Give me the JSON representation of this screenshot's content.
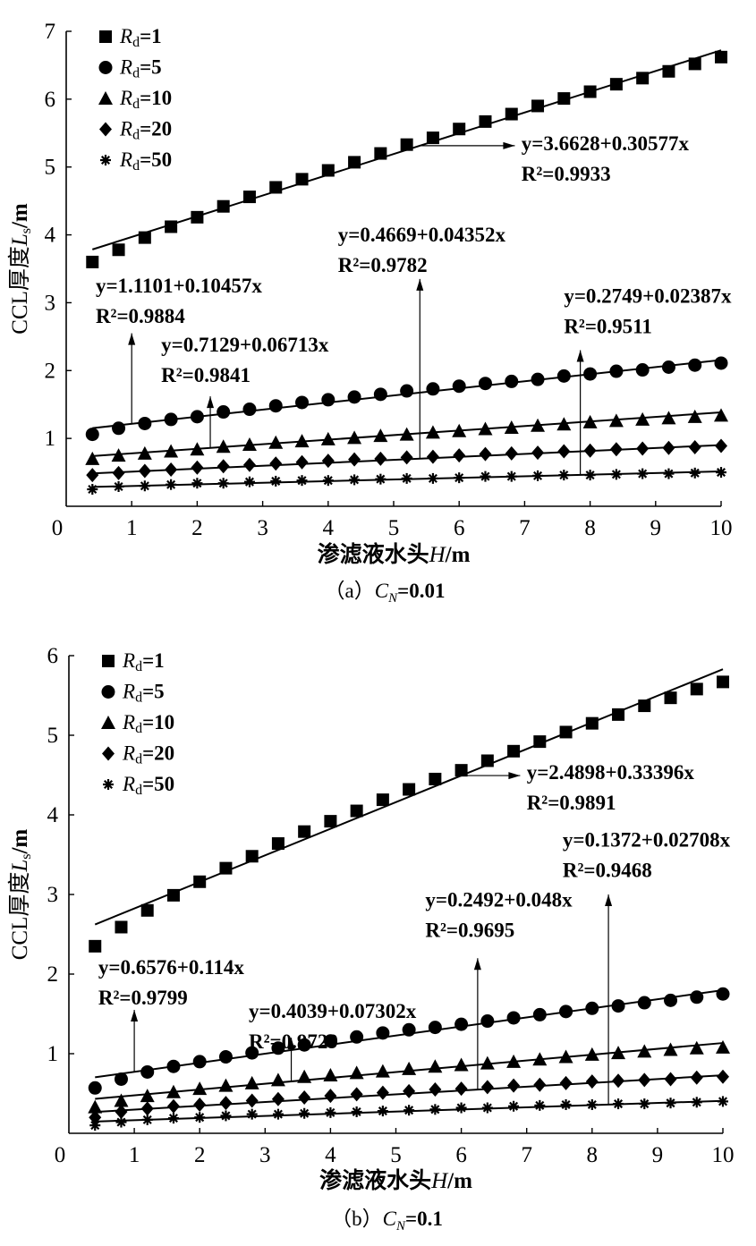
{
  "chart_data": [
    {
      "type": "scatter",
      "caption": "（a）C_N=0.01",
      "xlabel": "渗滤液水头H/m",
      "ylabel": "CCL厚度L_s/m",
      "xlim": [
        0,
        10
      ],
      "ylim": [
        0,
        7
      ],
      "xticks": [
        "0",
        "1",
        "2",
        "3",
        "4",
        "5",
        "6",
        "7",
        "8",
        "9",
        "10"
      ],
      "yticks": [
        "1",
        "2",
        "3",
        "4",
        "5",
        "6",
        "7"
      ],
      "legend_position": "top-left",
      "x": [
        0.4,
        0.8,
        1.2,
        1.6,
        2.0,
        2.4,
        2.8,
        3.2,
        3.6,
        4.0,
        4.4,
        4.8,
        5.2,
        5.6,
        6.0,
        6.4,
        6.8,
        7.2,
        7.6,
        8.0,
        8.4,
        8.8,
        9.2,
        9.6,
        10.0
      ],
      "series": [
        {
          "name": "Rd=1",
          "marker": "square",
          "values": [
            3.6,
            3.78,
            3.96,
            4.12,
            4.26,
            4.42,
            4.56,
            4.7,
            4.82,
            4.95,
            5.07,
            5.2,
            5.33,
            5.43,
            5.56,
            5.67,
            5.78,
            5.9,
            6.01,
            6.11,
            6.22,
            6.31,
            6.41,
            6.52,
            6.62
          ],
          "fit": {
            "intercept": 3.6628,
            "slope": 0.30577,
            "equation": "y=3.6628+0.30577x",
            "r2": "R²=0.9933"
          }
        },
        {
          "name": "Rd=5",
          "marker": "circle",
          "values": [
            1.06,
            1.15,
            1.22,
            1.28,
            1.32,
            1.39,
            1.43,
            1.48,
            1.53,
            1.57,
            1.61,
            1.65,
            1.7,
            1.73,
            1.77,
            1.81,
            1.84,
            1.87,
            1.92,
            1.95,
            1.99,
            2.01,
            2.05,
            2.08,
            2.11
          ],
          "fit": {
            "intercept": 1.1101,
            "slope": 0.10457,
            "equation": "y=1.1101+0.10457x",
            "r2": "R²=0.9884"
          }
        },
        {
          "name": "Rd=10",
          "marker": "triangle",
          "values": [
            0.7,
            0.75,
            0.78,
            0.81,
            0.84,
            0.88,
            0.91,
            0.94,
            0.96,
            0.99,
            1.01,
            1.04,
            1.06,
            1.09,
            1.11,
            1.14,
            1.16,
            1.19,
            1.21,
            1.24,
            1.26,
            1.28,
            1.3,
            1.32,
            1.34
          ],
          "fit": {
            "intercept": 0.7129,
            "slope": 0.06713,
            "equation": "y=0.7129+0.06713x",
            "r2": "R²=0.9841"
          }
        },
        {
          "name": "Rd=20",
          "marker": "diamond",
          "values": [
            0.46,
            0.49,
            0.52,
            0.54,
            0.57,
            0.59,
            0.61,
            0.63,
            0.65,
            0.67,
            0.69,
            0.7,
            0.72,
            0.73,
            0.75,
            0.77,
            0.78,
            0.79,
            0.81,
            0.82,
            0.84,
            0.85,
            0.86,
            0.87,
            0.89
          ],
          "fit": {
            "intercept": 0.4669,
            "slope": 0.04352,
            "equation": "y=0.4669+0.04352x",
            "r2": "R²=0.9782"
          }
        },
        {
          "name": "Rd=50",
          "marker": "asterisk",
          "values": [
            0.25,
            0.29,
            0.3,
            0.32,
            0.34,
            0.34,
            0.36,
            0.37,
            0.38,
            0.38,
            0.39,
            0.4,
            0.41,
            0.41,
            0.42,
            0.44,
            0.44,
            0.45,
            0.46,
            0.46,
            0.47,
            0.48,
            0.48,
            0.49,
            0.5
          ],
          "fit": {
            "intercept": 0.2749,
            "slope": 0.02387,
            "equation": "y=0.2749+0.02387x",
            "r2": "R²=0.9511"
          }
        }
      ]
    },
    {
      "type": "scatter",
      "caption": "（b）C_N=0.1",
      "xlabel": "渗滤液水头H/m",
      "ylabel": "CCL厚度L_s/m",
      "xlim": [
        0,
        10
      ],
      "ylim": [
        0,
        6
      ],
      "xticks": [
        "0",
        "1",
        "2",
        "3",
        "4",
        "5",
        "6",
        "7",
        "8",
        "9",
        "10"
      ],
      "yticks": [
        "1",
        "2",
        "3",
        "4",
        "5",
        "6"
      ],
      "legend_position": "top-left",
      "x": [
        0.4,
        0.8,
        1.2,
        1.6,
        2.0,
        2.4,
        2.8,
        3.2,
        3.6,
        4.0,
        4.4,
        4.8,
        5.2,
        5.6,
        6.0,
        6.4,
        6.8,
        7.2,
        7.6,
        8.0,
        8.4,
        8.8,
        9.2,
        9.6,
        10.0
      ],
      "series": [
        {
          "name": "Rd=1",
          "marker": "square",
          "values": [
            2.35,
            2.59,
            2.8,
            2.99,
            3.16,
            3.33,
            3.48,
            3.64,
            3.79,
            3.92,
            4.05,
            4.19,
            4.32,
            4.45,
            4.56,
            4.68,
            4.8,
            4.92,
            5.04,
            5.15,
            5.26,
            5.37,
            5.47,
            5.58,
            5.67
          ],
          "fit": {
            "intercept": 2.4898,
            "slope": 0.33396,
            "equation": "y=2.4898+0.33396x",
            "r2": "R²=0.9891"
          }
        },
        {
          "name": "Rd=5",
          "marker": "circle",
          "values": [
            0.57,
            0.68,
            0.77,
            0.84,
            0.9,
            0.96,
            1.01,
            1.07,
            1.11,
            1.16,
            1.21,
            1.26,
            1.3,
            1.33,
            1.37,
            1.41,
            1.45,
            1.49,
            1.53,
            1.57,
            1.6,
            1.64,
            1.67,
            1.71,
            1.75
          ],
          "fit": {
            "intercept": 0.6576,
            "slope": 0.114,
            "equation": "y=0.6576+0.114x",
            "r2": "R²=0.9799"
          }
        },
        {
          "name": "Rd=10",
          "marker": "triangle",
          "values": [
            0.33,
            0.41,
            0.47,
            0.52,
            0.56,
            0.6,
            0.63,
            0.67,
            0.71,
            0.73,
            0.76,
            0.78,
            0.81,
            0.84,
            0.86,
            0.88,
            0.9,
            0.93,
            0.96,
            0.99,
            1.01,
            1.03,
            1.05,
            1.07,
            1.08
          ],
          "fit": {
            "intercept": 0.4039,
            "slope": 0.07302,
            "equation": "y=0.4039+0.07302x",
            "r2": "R²=0.9729"
          }
        },
        {
          "name": "Rd=20",
          "marker": "diamond",
          "values": [
            0.2,
            0.27,
            0.31,
            0.34,
            0.36,
            0.38,
            0.41,
            0.43,
            0.45,
            0.47,
            0.49,
            0.51,
            0.53,
            0.55,
            0.56,
            0.58,
            0.6,
            0.61,
            0.63,
            0.65,
            0.66,
            0.67,
            0.68,
            0.7,
            0.71
          ],
          "fit": {
            "intercept": 0.2492,
            "slope": 0.048,
            "equation": "y=0.2492+0.048x",
            "r2": "R²=0.9695"
          }
        },
        {
          "name": "Rd=50",
          "marker": "asterisk",
          "values": [
            0.1,
            0.14,
            0.17,
            0.19,
            0.2,
            0.22,
            0.24,
            0.24,
            0.25,
            0.26,
            0.27,
            0.28,
            0.29,
            0.3,
            0.32,
            0.32,
            0.34,
            0.35,
            0.36,
            0.36,
            0.37,
            0.37,
            0.38,
            0.39,
            0.4
          ],
          "fit": {
            "intercept": 0.1372,
            "slope": 0.02708,
            "equation": "y=0.1372+0.02708x",
            "r2": "R²=0.9468"
          }
        }
      ]
    }
  ]
}
